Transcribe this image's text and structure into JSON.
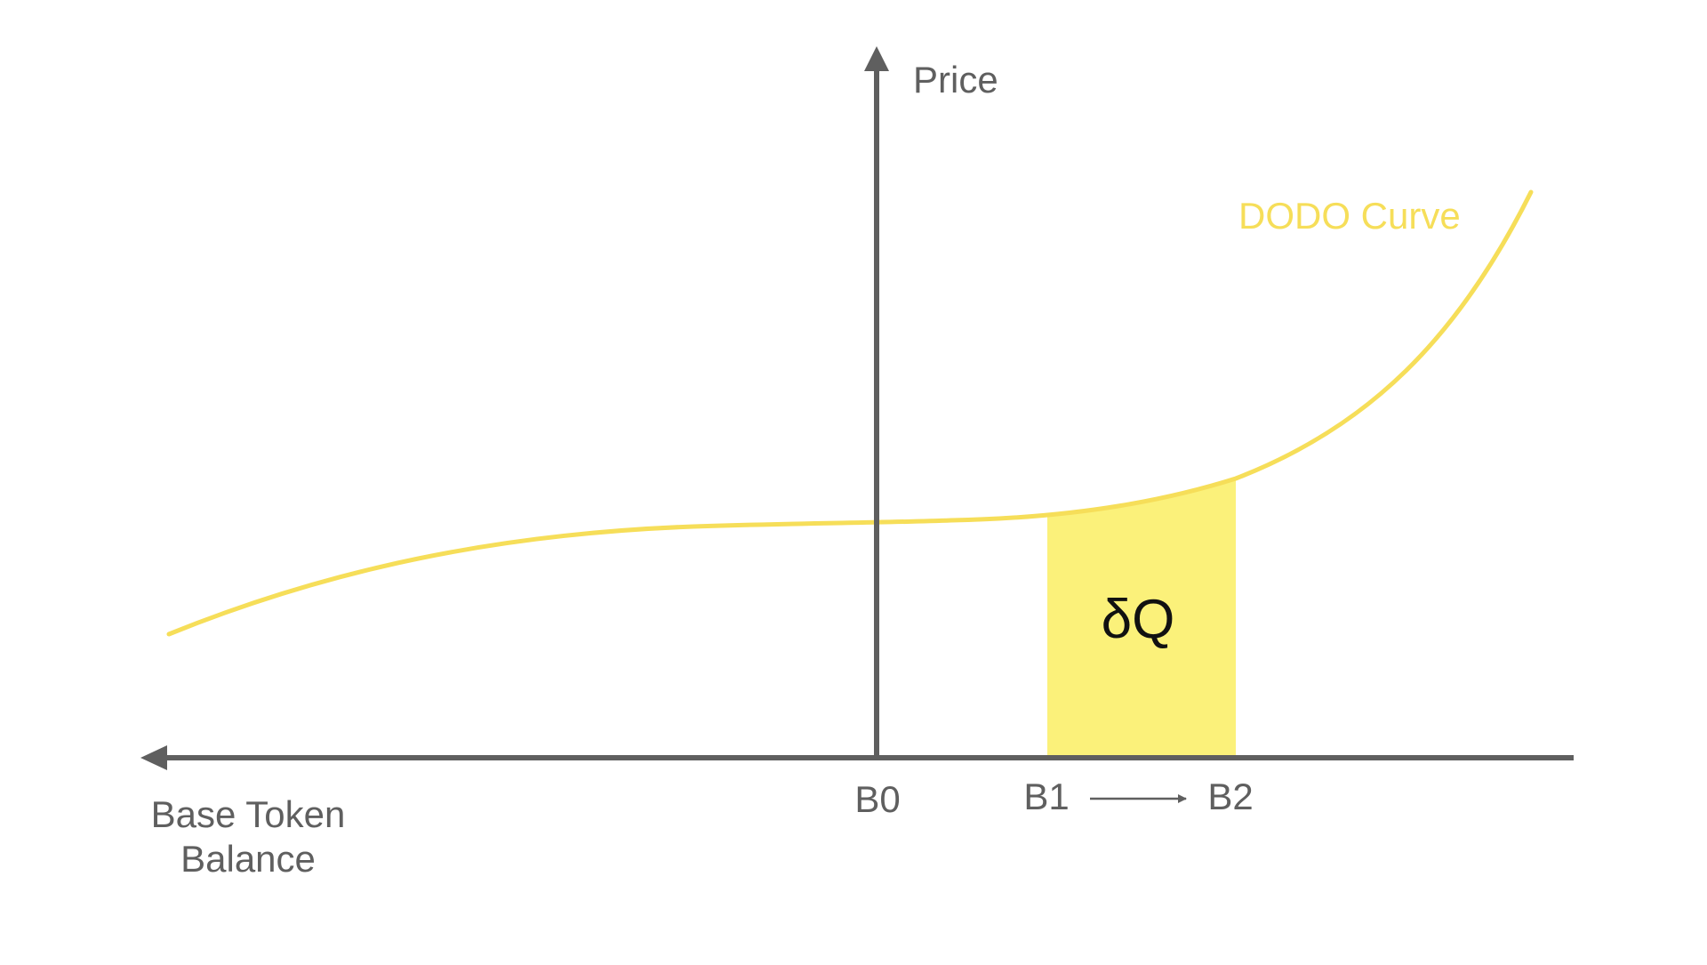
{
  "colors": {
    "axis": "#5f5f5f",
    "label": "#5f5f5f",
    "curve": "#f6de59",
    "area": "#fbf17a",
    "area_label": "#111111",
    "background": "#ffffff"
  },
  "axes": {
    "y_label": "Price",
    "x_label_line1": "Base Token",
    "x_label_line2": "Balance"
  },
  "curve": {
    "label": "DODO Curve"
  },
  "area": {
    "label": "δQ"
  },
  "ticks": {
    "b0": "B0",
    "b1": "B1",
    "b2": "B2"
  }
}
